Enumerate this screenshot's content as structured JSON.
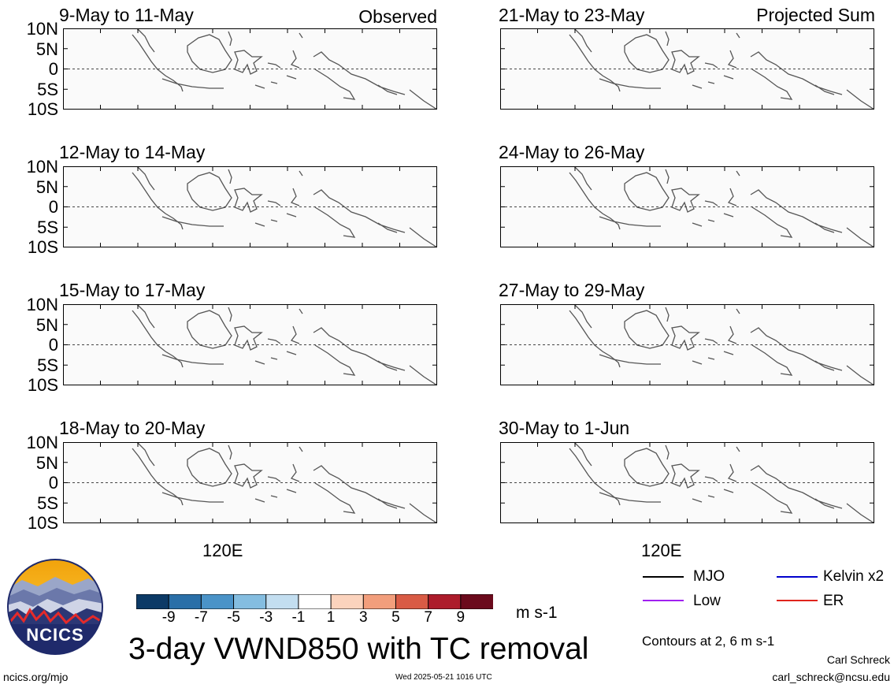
{
  "panels": [
    {
      "title": "9-May to 11-May",
      "corner": "Observed"
    },
    {
      "title": "12-May to 14-May",
      "corner": ""
    },
    {
      "title": "15-May to 17-May",
      "corner": ""
    },
    {
      "title": "18-May to 20-May",
      "corner": ""
    },
    {
      "title": "21-May to 23-May",
      "corner": "Projected Sum"
    },
    {
      "title": "24-May to 26-May",
      "corner": ""
    },
    {
      "title": "27-May to 29-May",
      "corner": ""
    },
    {
      "title": "30-May to 1-Jun",
      "corner": ""
    }
  ],
  "lat_ticks": [
    "10N",
    "5N",
    "0",
    "5S",
    "10S"
  ],
  "lon_label": "120E",
  "colorbar": {
    "ticks": [
      "-9",
      "-7",
      "-5",
      "-3",
      "-1",
      "1",
      "3",
      "5",
      "7",
      "9"
    ],
    "colors": [
      "#0c3a66",
      "#2a6fa8",
      "#4a93c8",
      "#84bde0",
      "#c3def0",
      "#ffffff",
      "#fbd3bd",
      "#f29e7c",
      "#d95b45",
      "#ad1c2b",
      "#6b0a1c"
    ],
    "units": "m s-1"
  },
  "title": "3-day VWND850 with TC removal",
  "legend": {
    "items": [
      {
        "label": "MJO",
        "color": "#000000"
      },
      {
        "label": "Kelvin x2",
        "color": "#0000cc"
      },
      {
        "label": "Low",
        "color": "#a020f0"
      },
      {
        "label": "ER",
        "color": "#e0241c"
      }
    ],
    "contours_note": "Contours at 2, 6 m s-1"
  },
  "logo_text": "NCICS",
  "footer": {
    "url": "ncics.org/mjo",
    "timestamp": "Wed 2025-05-21 1016 UTC",
    "author": "Carl Schreck",
    "email": "carl_schreck@ncsu.edu"
  }
}
